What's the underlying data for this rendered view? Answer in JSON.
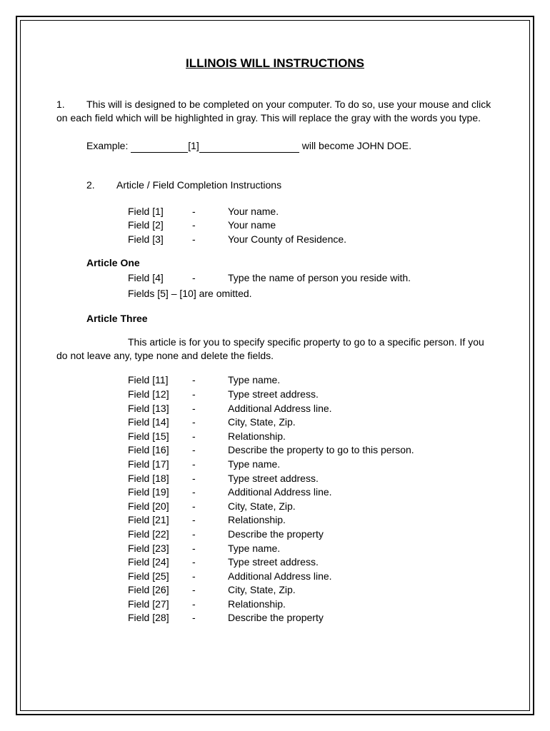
{
  "title": "ILLINOIS WILL INSTRUCTIONS",
  "para1": {
    "num": "1.",
    "text": "This will is designed to be completed on your computer.  To do so, use your mouse and click on each field which will be highlighted in gray.  This will replace the gray with the words you type."
  },
  "example": {
    "label": "Example:",
    "mid": "[1]",
    "tail": " will become JOHN DOE."
  },
  "para2": {
    "num": "2.",
    "heading": "Article / Field Completion Instructions"
  },
  "topFields": [
    {
      "label": "Field [1]",
      "dash": "-",
      "desc": "Your name."
    },
    {
      "label": "Field [2]",
      "dash": "-",
      "desc": "Your name"
    },
    {
      "label": "Field [3]",
      "dash": "-",
      "desc": "Your County of Residence."
    }
  ],
  "articleOne": {
    "title": "Article One",
    "field": {
      "label": "Field [4]",
      "dash": "-",
      "desc": "Type the name of person you reside with."
    },
    "omitted": "Fields [5] – [10] are omitted."
  },
  "articleThree": {
    "title": "Article Three",
    "body": "This article is for you to specify specific property to go to a specific person. If you do not leave any, type none and delete the fields.",
    "fields": [
      {
        "label": "Field [11]",
        "dash": "-",
        "desc": "Type name."
      },
      {
        "label": "Field [12]",
        "dash": "-",
        "desc": "Type street address."
      },
      {
        "label": "Field [13]",
        "dash": "-",
        "desc": "Additional Address line."
      },
      {
        "label": "Field [14]",
        "dash": "-",
        "desc": "City, State, Zip."
      },
      {
        "label": "Field [15]",
        "dash": "-",
        "desc": "Relationship."
      },
      {
        "label": "Field [16]",
        "dash": "-",
        "desc": "Describe the property to go to this person."
      },
      {
        "label": "Field [17]",
        "dash": "-",
        "desc": "Type name."
      },
      {
        "label": "Field [18]",
        "dash": "-",
        "desc": "Type street address."
      },
      {
        "label": "Field [19]",
        "dash": "-",
        "desc": "Additional Address line."
      },
      {
        "label": "Field [20]",
        "dash": "-",
        "desc": "City, State, Zip."
      },
      {
        "label": "Field [21]",
        "dash": "-",
        "desc": "Relationship."
      },
      {
        "label": "Field [22]",
        "dash": "-",
        "desc": "Describe the property"
      },
      {
        "label": "Field [23]",
        "dash": "-",
        "desc": "Type name."
      },
      {
        "label": "Field [24]",
        "dash": "-",
        "desc": "Type street address."
      },
      {
        "label": "Field [25]",
        "dash": "-",
        "desc": "Additional Address line."
      },
      {
        "label": "Field [26]",
        "dash": "-",
        "desc": "City, State, Zip."
      },
      {
        "label": "Field [27]",
        "dash": "-",
        "desc": "Relationship."
      },
      {
        "label": "Field [28]",
        "dash": "-",
        "desc": "Describe the property"
      }
    ]
  }
}
